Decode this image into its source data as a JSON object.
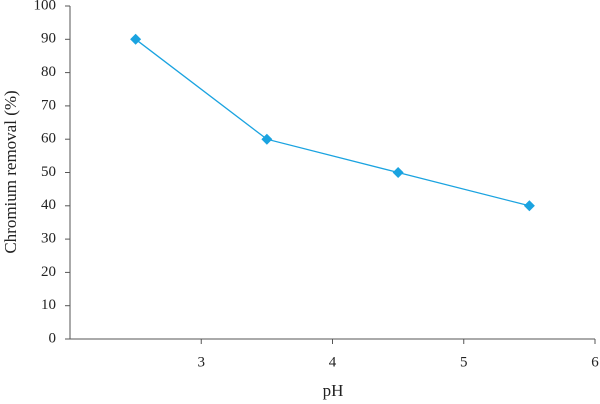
{
  "chart_data": {
    "type": "line",
    "xlabel": "pH",
    "ylabel": "Chromium removal (%)",
    "x": [
      2.5,
      3.5,
      4.5,
      5.5
    ],
    "series": [
      {
        "color": "#1aa3e0",
        "values": [
          90,
          60,
          50,
          40
        ]
      }
    ],
    "xlim": [
      2,
      6
    ],
    "xticks": [
      3,
      4,
      5,
      6
    ],
    "ylim": [
      0,
      100
    ],
    "yticks": [
      0,
      10,
      20,
      30,
      40,
      50,
      60,
      70,
      80,
      90,
      100
    ],
    "marker": "diamond"
  }
}
